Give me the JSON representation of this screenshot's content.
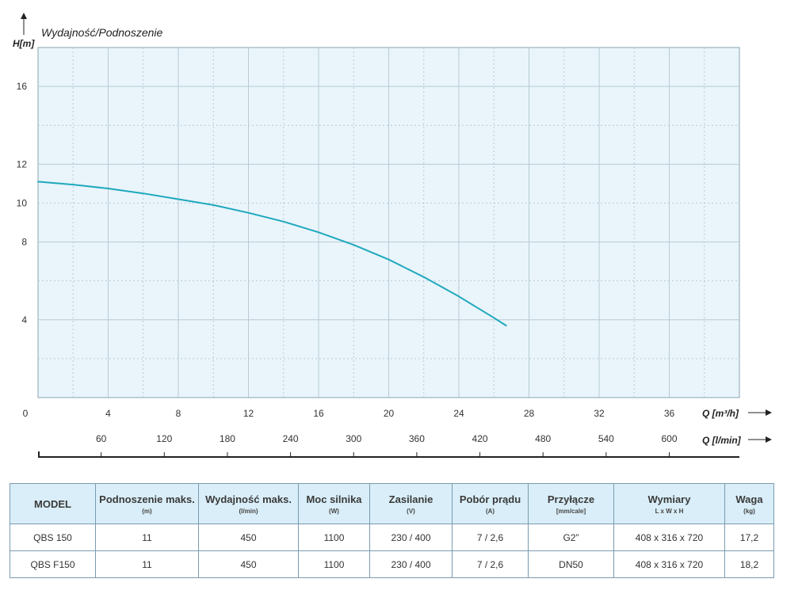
{
  "chart_data": {
    "type": "line",
    "title": "Wydajność/Podnoszenie",
    "ylabel": "H[m]",
    "xlabel": "Q [m³/h]",
    "x2label": "Q [l/min]",
    "xlim": [
      0,
      40
    ],
    "ylim": [
      0,
      18
    ],
    "y_ticks": [
      4,
      8,
      10,
      12,
      16
    ],
    "x_ticks": [
      0,
      4,
      8,
      12,
      16,
      20,
      24,
      28,
      32,
      36
    ],
    "x2_ticks": [
      60,
      120,
      180,
      240,
      300,
      360,
      420,
      480,
      540,
      600
    ],
    "grid": true,
    "colors": {
      "curve": "#1fa8bd",
      "plot_bg": "#e9f5fb",
      "grid": "#b9c9d4"
    },
    "series": [
      {
        "x": [
          0,
          2,
          4,
          6,
          8,
          10,
          12,
          14,
          16,
          18,
          20,
          22,
          24,
          25,
          26,
          26.7
        ],
        "y": [
          11.1,
          10.95,
          10.75,
          10.5,
          10.2,
          9.9,
          9.5,
          9.05,
          8.5,
          7.85,
          7.1,
          6.2,
          5.2,
          4.65,
          4.1,
          3.7
        ]
      }
    ]
  },
  "table": {
    "headers": [
      {
        "label": "MODEL",
        "unit": ""
      },
      {
        "label": "Podnoszenie maks.",
        "unit": "(m)"
      },
      {
        "label": "Wydajność maks.",
        "unit": "(l/min)"
      },
      {
        "label": "Moc silnika",
        "unit": "(W)"
      },
      {
        "label": "Zasilanie",
        "unit": "(V)"
      },
      {
        "label": "Pobór prądu",
        "unit": "(A)"
      },
      {
        "label": "Przyłącze",
        "unit": "[mm/cale]"
      },
      {
        "label": "Wymiary",
        "unit": "L x W x H"
      },
      {
        "label": "Waga",
        "unit": "(kg)"
      }
    ],
    "rows": [
      [
        "QBS 150",
        "11",
        "450",
        "1100",
        "230 / 400",
        "7 / 2,6",
        "G2”",
        "408 x 316 x 720",
        "17,2"
      ],
      [
        "QBS F150",
        "11",
        "450",
        "1100",
        "230 / 400",
        "7 / 2,6",
        "DN50",
        "408 x 316 x 720",
        "18,2"
      ]
    ]
  }
}
